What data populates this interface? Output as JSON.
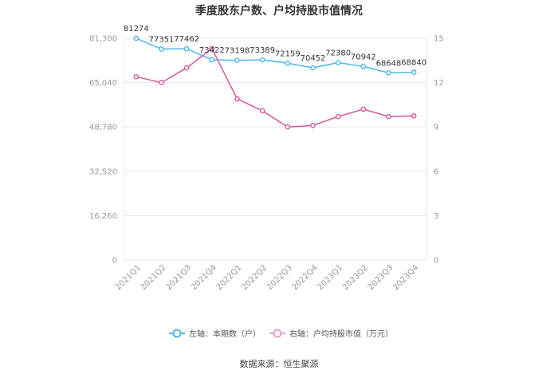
{
  "chart_data": {
    "type": "line",
    "title": "季度股东户数、户均持股市值情况",
    "categories": [
      "2021Q1",
      "2021Q2",
      "2021Q3",
      "2021Q4",
      "2022Q1",
      "2022Q2",
      "2022Q3",
      "2022Q4",
      "2023Q1",
      "2023Q2",
      "2023Q3",
      "2023Q4"
    ],
    "left_axis": {
      "min": 0,
      "max": 81300,
      "ticks": [
        "0",
        "16,260",
        "32,520",
        "48,780",
        "65,040",
        "81,300"
      ]
    },
    "right_axis": {
      "min": 0,
      "max": 15,
      "ticks": [
        "0",
        "3",
        "6",
        "9",
        "12",
        "15"
      ]
    },
    "series": [
      {
        "name": "左轴：本期数（户）",
        "axis": "left",
        "color": "#4db8e8",
        "values": [
          81274,
          77351,
          77462,
          73422,
          73198,
          73389,
          72159,
          70452,
          72380,
          70942,
          68648,
          68840
        ],
        "labels": [
          "81274",
          "77351",
          "77462",
          "73422",
          "73198",
          "73389",
          "72159",
          "70452",
          "72380",
          "70942",
          "68648",
          "68840"
        ]
      },
      {
        "name": "右轴：户均持股市值（万元）",
        "axis": "right",
        "color": "#d9559b",
        "values": [
          12.4,
          12.0,
          13.0,
          14.3,
          10.9,
          10.1,
          9.0,
          9.1,
          9.7,
          10.2,
          9.7,
          9.75
        ]
      }
    ],
    "grid": true,
    "legend_position": "bottom",
    "source": "数据来源：恒生聚源"
  }
}
